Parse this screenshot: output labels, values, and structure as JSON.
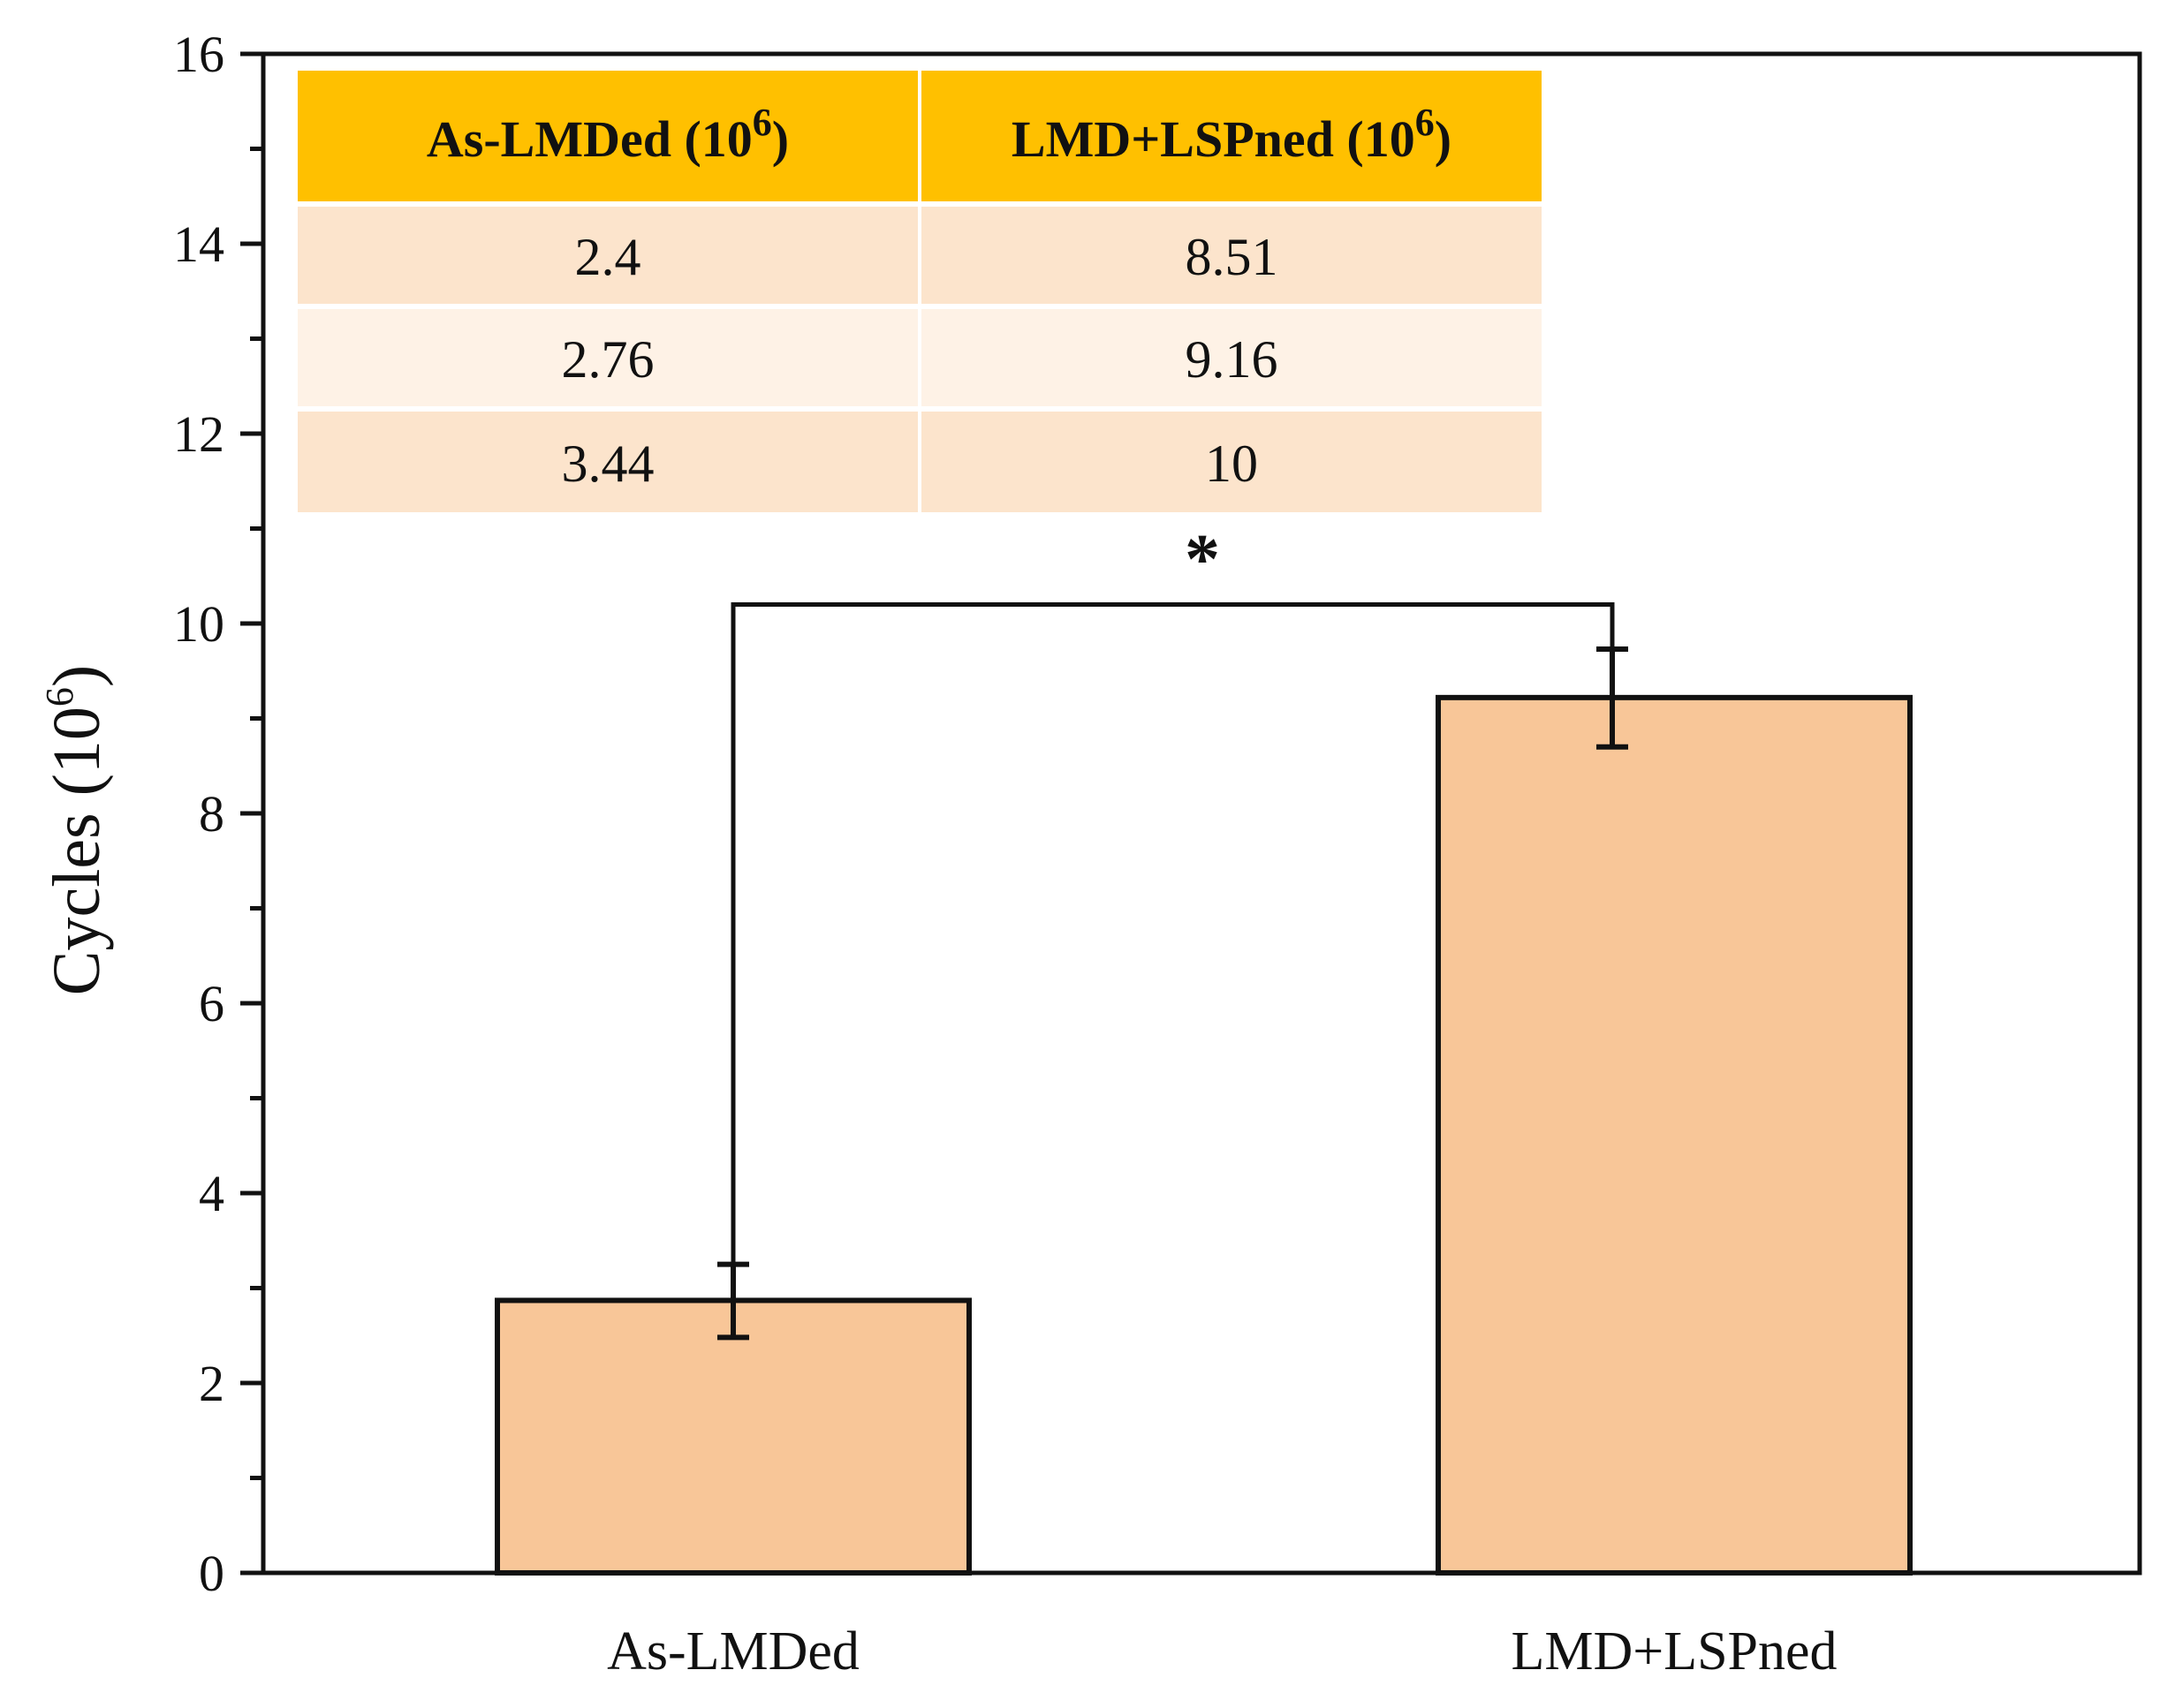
{
  "chart_data": {
    "type": "bar",
    "categories": [
      "As-LMDed",
      "LMD+LSPned"
    ],
    "values": [
      2.87,
      9.22
    ],
    "error_low": [
      2.48,
      8.7
    ],
    "error_high": [
      3.25,
      9.73
    ],
    "ylabel": "Cycles (10",
    "ylabel_exp": "6",
    "ylabel_close": ")",
    "ylim": [
      0,
      16
    ],
    "yticks": [
      0,
      2,
      4,
      6,
      8,
      10,
      12,
      14,
      16
    ],
    "bracket_value": 10.2,
    "significance": "*",
    "bar_color": "#F8C698",
    "table": {
      "headers": [
        {
          "text": "As-LMDed (10",
          "exp": "6",
          "close": ")"
        },
        {
          "text": "LMD+LSPned (10",
          "exp": "6",
          "close": ")"
        }
      ],
      "rows": [
        [
          "2.4",
          "8.51"
        ],
        [
          "2.76",
          "9.16"
        ],
        [
          "3.44",
          "10"
        ]
      ],
      "header_color": "#FFC000",
      "row_colors": [
        "#FCE4CC",
        "#FEF2E6",
        "#FCE4CC"
      ]
    }
  }
}
